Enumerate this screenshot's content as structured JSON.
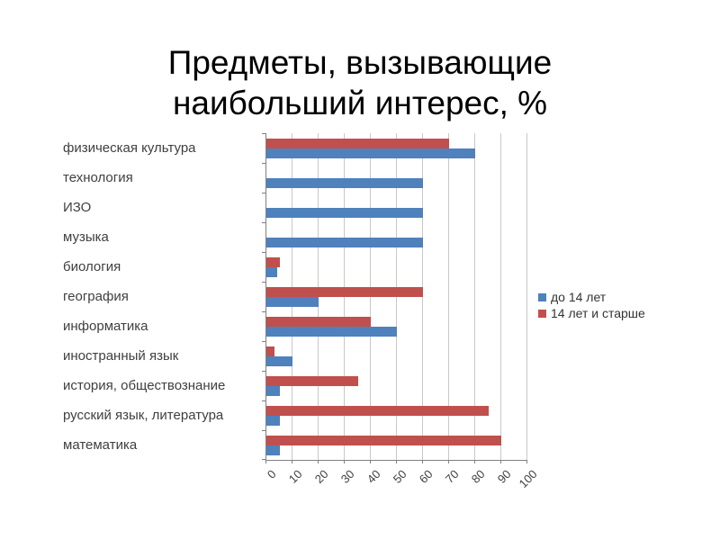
{
  "title": {
    "line1": "Предметы, вызывающие",
    "line2": "наибольший интерес, %"
  },
  "chart_data": {
    "type": "bar",
    "orientation": "horizontal",
    "title": "Предметы, вызывающие наибольший интерес, %",
    "categories": [
      "физическая культура",
      "технология",
      "ИЗО",
      "музыка",
      "биология",
      "география",
      "информатика",
      "иностранный язык",
      "история, обществознание",
      "русский язык, литература",
      "математика"
    ],
    "series": [
      {
        "name": "до 14 лет",
        "color": "#4f81bd",
        "values": [
          80,
          60,
          60,
          60,
          4,
          20,
          50,
          10,
          5,
          5,
          5
        ]
      },
      {
        "name": "14 лет и старше",
        "color": "#c0504d",
        "values": [
          70,
          0,
          0,
          0,
          5,
          60,
          40,
          3,
          35,
          85,
          90
        ]
      }
    ],
    "xlim": [
      0,
      100
    ],
    "xticks": [
      0,
      10,
      20,
      30,
      40,
      50,
      60,
      70,
      80,
      90,
      100
    ],
    "grid": true,
    "legend_position": "right",
    "axis_color": "#808080",
    "gridline_color": "#c8c8c8"
  }
}
